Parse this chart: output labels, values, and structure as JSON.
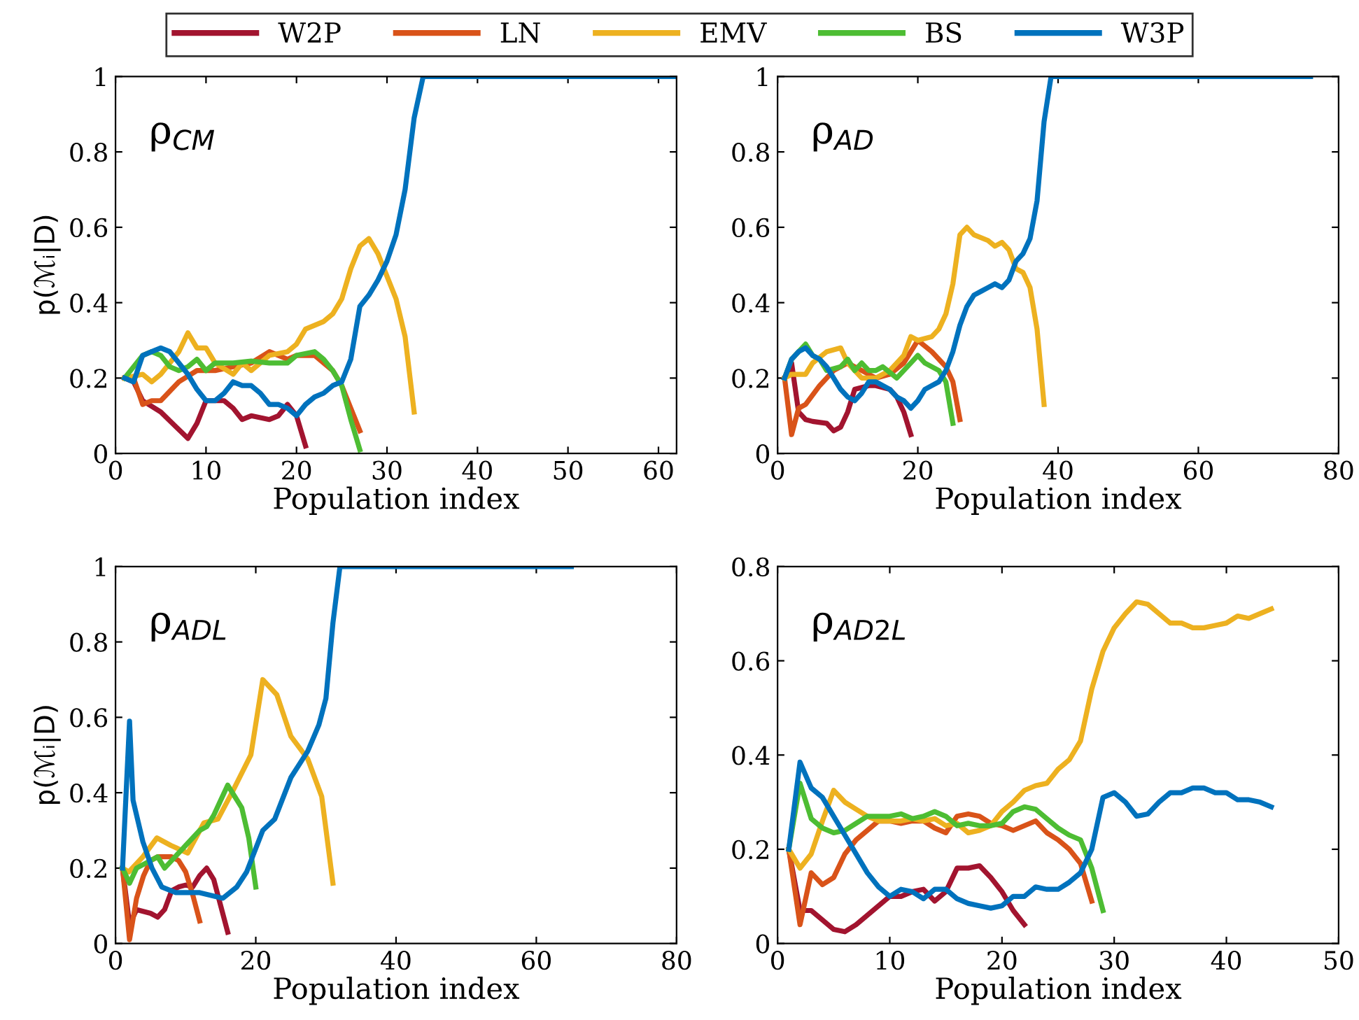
{
  "chart_data": [
    {
      "type": "line",
      "xlabel": "Population index",
      "ylabel": "p(ℳᵢ|D)",
      "annotations": [
        "ρ$_{CM}$"
      ],
      "legend": "top",
      "xlim": [
        0,
        62
      ],
      "ylim": [
        0,
        1
      ],
      "xticks": [
        0,
        10,
        20,
        30,
        40,
        50,
        60
      ],
      "yticks": [
        0,
        0.2,
        0.4,
        0.6,
        0.8,
        1
      ],
      "series": [
        {
          "name": "W2P",
          "color": "#a2142f",
          "x": [
            1,
            2,
            3,
            5,
            8,
            9,
            10,
            12,
            13,
            14,
            15,
            17,
            18,
            19,
            20,
            21
          ],
          "values": [
            0.2,
            0.19,
            0.14,
            0.11,
            0.04,
            0.08,
            0.14,
            0.14,
            0.12,
            0.09,
            0.1,
            0.09,
            0.1,
            0.13,
            0.1,
            0.02
          ]
        },
        {
          "name": "LN",
          "color": "#d95319",
          "x": [
            1,
            2,
            3,
            4,
            5,
            7,
            9,
            11,
            13,
            15,
            17,
            19,
            20,
            22,
            24,
            25,
            26,
            27
          ],
          "values": [
            0.2,
            0.2,
            0.13,
            0.14,
            0.14,
            0.19,
            0.22,
            0.22,
            0.23,
            0.24,
            0.27,
            0.25,
            0.26,
            0.26,
            0.22,
            0.18,
            0.12,
            0.06
          ]
        },
        {
          "name": "EMV",
          "color": "#edb120",
          "x": [
            1,
            3,
            4,
            5,
            7,
            8,
            9,
            10,
            11,
            13,
            14,
            15,
            17,
            19,
            20,
            21,
            23,
            24,
            25,
            26,
            27,
            28,
            29,
            30,
            31,
            32,
            33
          ],
          "values": [
            0.2,
            0.21,
            0.19,
            0.21,
            0.27,
            0.32,
            0.28,
            0.28,
            0.24,
            0.21,
            0.24,
            0.22,
            0.26,
            0.27,
            0.29,
            0.33,
            0.35,
            0.37,
            0.41,
            0.49,
            0.55,
            0.57,
            0.53,
            0.47,
            0.41,
            0.31,
            0.11
          ]
        },
        {
          "name": "BS",
          "color": "#4dbd33",
          "x": [
            1,
            3,
            4,
            5,
            6,
            7,
            8,
            9,
            10,
            11,
            13,
            15,
            17,
            19,
            20,
            22,
            23,
            24,
            25,
            26,
            27
          ],
          "values": [
            0.2,
            0.26,
            0.27,
            0.26,
            0.23,
            0.22,
            0.23,
            0.25,
            0.22,
            0.24,
            0.24,
            0.245,
            0.24,
            0.24,
            0.26,
            0.27,
            0.25,
            0.22,
            0.18,
            0.09,
            0.01
          ]
        },
        {
          "name": "W3P",
          "color": "#0072bd",
          "x": [
            1,
            2,
            3,
            4,
            5,
            6,
            7,
            8,
            9,
            10,
            11,
            12,
            13,
            14,
            15,
            16,
            17,
            18,
            19,
            20,
            21,
            22,
            23,
            24,
            25,
            26,
            27,
            28,
            29,
            30,
            31,
            32,
            33,
            34,
            62
          ],
          "values": [
            0.2,
            0.19,
            0.26,
            0.27,
            0.28,
            0.27,
            0.24,
            0.21,
            0.17,
            0.14,
            0.14,
            0.16,
            0.19,
            0.18,
            0.18,
            0.16,
            0.13,
            0.13,
            0.12,
            0.1,
            0.13,
            0.15,
            0.16,
            0.18,
            0.19,
            0.25,
            0.39,
            0.42,
            0.46,
            0.51,
            0.58,
            0.7,
            0.89,
            1,
            1
          ]
        }
      ]
    },
    {
      "type": "line",
      "xlabel": "Population index",
      "annotations": [
        "ρ$_{AD}$"
      ],
      "xlim": [
        0,
        80
      ],
      "ylim": [
        0,
        1
      ],
      "xticks": [
        0,
        20,
        40,
        60,
        80
      ],
      "yticks": [
        0,
        0.2,
        0.4,
        0.6,
        0.8,
        1
      ],
      "series": [
        {
          "color": "#a2142f",
          "x": [
            1,
            2,
            3,
            4,
            5,
            7,
            8,
            9,
            10,
            11,
            13,
            14,
            16,
            17,
            18,
            19
          ],
          "values": [
            0.2,
            0.24,
            0.11,
            0.09,
            0.085,
            0.08,
            0.06,
            0.07,
            0.11,
            0.17,
            0.18,
            0.18,
            0.17,
            0.15,
            0.11,
            0.05
          ]
        },
        {
          "color": "#d95319",
          "x": [
            1,
            2,
            3,
            4,
            6,
            8,
            10,
            12,
            14,
            16,
            18,
            20,
            22,
            24,
            25,
            26
          ],
          "values": [
            0.2,
            0.05,
            0.12,
            0.13,
            0.18,
            0.22,
            0.24,
            0.22,
            0.2,
            0.21,
            0.24,
            0.3,
            0.27,
            0.23,
            0.19,
            0.09
          ]
        },
        {
          "color": "#edb120",
          "x": [
            1,
            2,
            4,
            5,
            7,
            9,
            10,
            12,
            14,
            16,
            18,
            19,
            20,
            22,
            23,
            24,
            25,
            26,
            27,
            28,
            30,
            31,
            32,
            33,
            34,
            35,
            36,
            37,
            38
          ],
          "values": [
            0.2,
            0.21,
            0.21,
            0.24,
            0.27,
            0.28,
            0.24,
            0.2,
            0.2,
            0.22,
            0.26,
            0.31,
            0.3,
            0.31,
            0.33,
            0.37,
            0.45,
            0.58,
            0.6,
            0.58,
            0.565,
            0.55,
            0.56,
            0.54,
            0.49,
            0.48,
            0.44,
            0.33,
            0.13
          ]
        },
        {
          "color": "#4dbd33",
          "x": [
            1,
            2,
            4,
            5,
            6,
            7,
            9,
            10,
            11,
            12,
            13,
            14,
            15,
            17,
            19,
            20,
            21,
            23,
            24,
            25
          ],
          "values": [
            0.2,
            0.25,
            0.29,
            0.26,
            0.25,
            0.22,
            0.23,
            0.25,
            0.22,
            0.24,
            0.22,
            0.22,
            0.23,
            0.2,
            0.24,
            0.26,
            0.24,
            0.22,
            0.19,
            0.08
          ]
        },
        {
          "color": "#0072bd",
          "x": [
            1,
            2,
            3,
            4,
            5,
            6,
            7,
            8,
            9,
            10,
            11,
            12,
            13,
            14,
            16,
            17,
            18,
            19,
            20,
            21,
            22,
            23,
            24,
            25,
            26,
            27,
            28,
            29,
            30,
            31,
            32,
            33,
            34,
            35,
            36,
            37,
            38,
            39,
            76
          ],
          "values": [
            0.2,
            0.25,
            0.27,
            0.28,
            0.26,
            0.25,
            0.23,
            0.2,
            0.17,
            0.15,
            0.14,
            0.16,
            0.19,
            0.19,
            0.17,
            0.15,
            0.14,
            0.12,
            0.14,
            0.17,
            0.18,
            0.19,
            0.22,
            0.27,
            0.34,
            0.39,
            0.42,
            0.43,
            0.44,
            0.45,
            0.44,
            0.46,
            0.51,
            0.53,
            0.57,
            0.67,
            0.88,
            1,
            1
          ]
        }
      ]
    },
    {
      "type": "line",
      "xlabel": "Population index",
      "ylabel": "p(ℳᵢ|D)",
      "annotations": [
        "ρ$_{ADL}$"
      ],
      "xlim": [
        0,
        80
      ],
      "ylim": [
        0,
        1
      ],
      "xticks": [
        0,
        20,
        40,
        60,
        80
      ],
      "yticks": [
        0,
        0.2,
        0.4,
        0.6,
        0.8,
        1
      ],
      "series": [
        {
          "color": "#a2142f",
          "x": [
            1,
            2,
            3,
            5,
            6,
            7,
            8,
            9,
            10,
            11,
            12,
            13,
            14,
            15,
            16
          ],
          "values": [
            0.2,
            0.05,
            0.09,
            0.08,
            0.07,
            0.09,
            0.14,
            0.15,
            0.155,
            0.15,
            0.18,
            0.2,
            0.17,
            0.1,
            0.03
          ]
        },
        {
          "color": "#d95319",
          "x": [
            1,
            2,
            3,
            4,
            5,
            6,
            8,
            9,
            10,
            11,
            12
          ],
          "values": [
            0.2,
            0.01,
            0.12,
            0.18,
            0.22,
            0.23,
            0.23,
            0.22,
            0.19,
            0.13,
            0.06
          ]
        },
        {
          "color": "#edb120",
          "x": [
            1,
            1.9,
            3.9,
            5.9,
            7.9,
            10.3,
            12.6,
            14.6,
            16.6,
            19.3,
            21,
            23,
            25,
            27.4,
            29.4,
            31
          ],
          "values": [
            0.2,
            0.19,
            0.23,
            0.28,
            0.26,
            0.24,
            0.32,
            0.33,
            0.4,
            0.5,
            0.7,
            0.66,
            0.55,
            0.49,
            0.39,
            0.16
          ]
        },
        {
          "color": "#4dbd33",
          "x": [
            1,
            2,
            3,
            5,
            6,
            7,
            8,
            9,
            10,
            12,
            13,
            14,
            15,
            16,
            17,
            18,
            19,
            20
          ],
          "values": [
            0.2,
            0.16,
            0.2,
            0.22,
            0.23,
            0.2,
            0.22,
            0.24,
            0.26,
            0.3,
            0.31,
            0.34,
            0.38,
            0.42,
            0.39,
            0.36,
            0.28,
            0.15
          ]
        },
        {
          "color": "#0072bd",
          "x": [
            1,
            2,
            2.5,
            3.9,
            5.2,
            6.6,
            8.6,
            12,
            15.3,
            17.3,
            18.7,
            21,
            22.7,
            25,
            27.4,
            29,
            30,
            31,
            32,
            65
          ],
          "values": [
            0.2,
            0.59,
            0.38,
            0.27,
            0.2,
            0.15,
            0.135,
            0.135,
            0.12,
            0.15,
            0.19,
            0.3,
            0.33,
            0.44,
            0.51,
            0.58,
            0.65,
            0.85,
            1,
            1
          ]
        }
      ]
    },
    {
      "type": "line",
      "xlabel": "Population index",
      "annotations": [
        "ρ$_{AD2L}$"
      ],
      "xlim": [
        0,
        50
      ],
      "ylim": [
        0,
        0.8
      ],
      "xticks": [
        0,
        10,
        20,
        30,
        40,
        50
      ],
      "yticks": [
        0,
        0.2,
        0.4,
        0.6,
        0.8
      ],
      "series": [
        {
          "color": "#a2142f",
          "x": [
            1,
            2,
            3,
            4,
            5,
            6,
            7,
            8,
            9,
            10,
            11,
            12,
            13,
            14,
            15,
            16,
            17,
            18,
            19,
            20,
            21,
            22
          ],
          "values": [
            0.2,
            0.07,
            0.07,
            0.05,
            0.03,
            0.025,
            0.04,
            0.06,
            0.08,
            0.1,
            0.1,
            0.11,
            0.115,
            0.09,
            0.11,
            0.16,
            0.16,
            0.165,
            0.14,
            0.11,
            0.07,
            0.04
          ]
        },
        {
          "color": "#d95319",
          "x": [
            1,
            2,
            3,
            4,
            5,
            6,
            7,
            8,
            9,
            10,
            11,
            12,
            13,
            14,
            15,
            16,
            17,
            18,
            19,
            20,
            21,
            22,
            23,
            24,
            25,
            26,
            27,
            28
          ],
          "values": [
            0.2,
            0.04,
            0.15,
            0.125,
            0.14,
            0.19,
            0.22,
            0.24,
            0.26,
            0.26,
            0.255,
            0.26,
            0.26,
            0.245,
            0.235,
            0.27,
            0.275,
            0.27,
            0.255,
            0.25,
            0.24,
            0.25,
            0.26,
            0.235,
            0.22,
            0.2,
            0.17,
            0.09
          ]
        },
        {
          "color": "#edb120",
          "x": [
            1,
            2,
            3,
            4,
            5,
            6,
            7,
            8,
            9,
            10,
            11,
            12,
            13,
            14,
            15,
            16,
            17,
            18,
            19,
            20,
            21,
            22,
            23,
            24,
            25,
            26,
            27,
            28,
            29,
            30,
            31,
            32,
            33,
            34,
            35,
            36,
            37,
            38,
            39,
            40,
            41,
            42,
            43,
            44
          ],
          "values": [
            0.2,
            0.16,
            0.19,
            0.26,
            0.325,
            0.3,
            0.285,
            0.27,
            0.26,
            0.26,
            0.26,
            0.265,
            0.26,
            0.265,
            0.25,
            0.255,
            0.235,
            0.24,
            0.25,
            0.28,
            0.3,
            0.325,
            0.335,
            0.34,
            0.37,
            0.39,
            0.43,
            0.54,
            0.62,
            0.67,
            0.7,
            0.725,
            0.72,
            0.7,
            0.68,
            0.68,
            0.67,
            0.67,
            0.675,
            0.68,
            0.695,
            0.69,
            0.7,
            0.71
          ]
        },
        {
          "color": "#4dbd33",
          "x": [
            1,
            2,
            3,
            4,
            5,
            6,
            7,
            8,
            9,
            10,
            11,
            12,
            13,
            14,
            15,
            16,
            17,
            18,
            19,
            20,
            21,
            22,
            23,
            24,
            25,
            26,
            27,
            28,
            29
          ],
          "values": [
            0.2,
            0.34,
            0.265,
            0.245,
            0.235,
            0.24,
            0.255,
            0.27,
            0.27,
            0.27,
            0.275,
            0.265,
            0.27,
            0.28,
            0.27,
            0.25,
            0.255,
            0.25,
            0.25,
            0.255,
            0.28,
            0.29,
            0.285,
            0.265,
            0.245,
            0.23,
            0.22,
            0.16,
            0.07
          ]
        },
        {
          "color": "#0072bd",
          "x": [
            1,
            2,
            3,
            4,
            5,
            6,
            7,
            8,
            9,
            10,
            11,
            12,
            13,
            14,
            15,
            16,
            17,
            18,
            19,
            20,
            21,
            22,
            23,
            24,
            25,
            26,
            27,
            28,
            29,
            30,
            31,
            32,
            33,
            34,
            35,
            36,
            37,
            38,
            39,
            40,
            41,
            42,
            43,
            44
          ],
          "values": [
            0.2,
            0.385,
            0.33,
            0.31,
            0.27,
            0.23,
            0.19,
            0.15,
            0.12,
            0.1,
            0.115,
            0.11,
            0.095,
            0.115,
            0.115,
            0.095,
            0.085,
            0.08,
            0.075,
            0.08,
            0.1,
            0.1,
            0.12,
            0.115,
            0.115,
            0.13,
            0.15,
            0.2,
            0.31,
            0.32,
            0.3,
            0.27,
            0.275,
            0.3,
            0.32,
            0.32,
            0.33,
            0.33,
            0.32,
            0.32,
            0.305,
            0.305,
            0.3,
            0.29
          ]
        }
      ]
    }
  ]
}
